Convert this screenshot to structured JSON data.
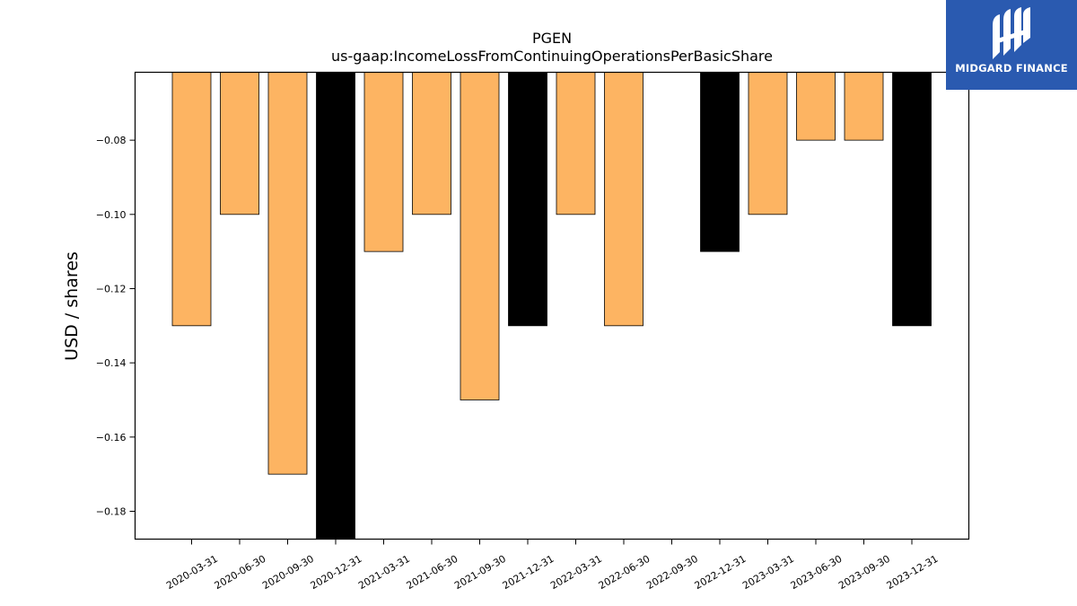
{
  "chart_data": {
    "type": "bar",
    "title": "PGEN",
    "subtitle": "us-gaap:IncomeLossFromContinuingOperationsPerBasicShare",
    "xlabel": "",
    "ylabel": "USD / shares",
    "categories": [
      "2020-03-31",
      "2020-06-30",
      "2020-09-30",
      "2020-12-31",
      "2021-03-31",
      "2021-06-30",
      "2021-09-30",
      "2021-12-31",
      "2022-03-31",
      "2022-06-30",
      "2022-09-30",
      "2022-12-31",
      "2023-03-31",
      "2023-06-30",
      "2023-09-30",
      "2023-12-31"
    ],
    "values": [
      -0.13,
      -0.1,
      -0.17,
      -0.19,
      -0.11,
      -0.1,
      -0.15,
      -0.13,
      -0.1,
      -0.13,
      null,
      -0.11,
      -0.1,
      -0.08,
      -0.08,
      -0.13
    ],
    "bar_colors": [
      "#fdb462",
      "#fdb462",
      "#fdb462",
      "#000000",
      "#fdb462",
      "#fdb462",
      "#fdb462",
      "#000000",
      "#fdb462",
      "#fdb462",
      "#fdb462",
      "#000000",
      "#fdb462",
      "#fdb462",
      "#fdb462",
      "#000000"
    ],
    "ylim": [
      -0.1875,
      -0.0617
    ],
    "yticks": [
      -0.08,
      -0.1,
      -0.12,
      -0.14,
      -0.16,
      -0.18
    ],
    "ytick_labels": [
      "−0.08",
      "−0.10",
      "−0.12",
      "−0.14",
      "−0.16",
      "−0.18"
    ],
    "grid": false,
    "legend": "none"
  },
  "logo": {
    "text": "MIDGARD FINANCE",
    "background": "#2a5ab0",
    "icon": "midgard-logo-icon"
  }
}
